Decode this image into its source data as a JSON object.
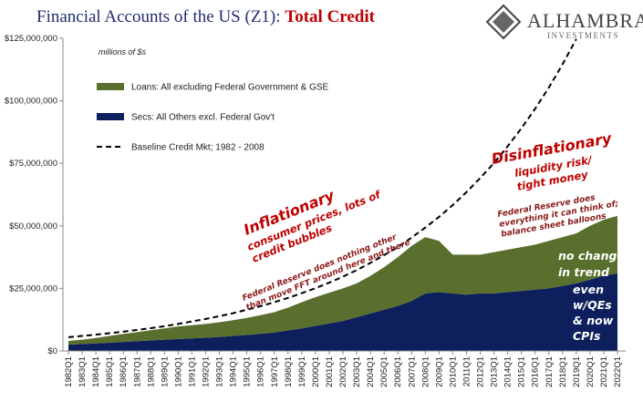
{
  "chart_data": {
    "type": "stacked-area",
    "title": "Financial Accounts of the US (Z1): ",
    "title_highlight": "Total Credit",
    "logo": "ALHAMBRA",
    "logo_sub": "INVESTMENTS",
    "units_note": "millions of $s",
    "legend": "upper left",
    "categories": [
      "1982Q1",
      "1983Q1",
      "1984Q1",
      "1985Q1",
      "1986Q1",
      "1987Q1",
      "1988Q1",
      "1989Q1",
      "1990Q1",
      "1991Q1",
      "1992Q1",
      "1993Q1",
      "1994Q1",
      "1995Q1",
      "1996Q1",
      "1997Q1",
      "1998Q1",
      "1999Q1",
      "2000Q1",
      "2001Q1",
      "2002Q1",
      "2003Q1",
      "2004Q1",
      "2005Q1",
      "2006Q1",
      "2007Q1",
      "2008Q1",
      "2009Q1",
      "2010Q1",
      "2011Q1",
      "2012Q1",
      "2013Q1",
      "2014Q1",
      "2015Q1",
      "2016Q1",
      "2017Q1",
      "2018Q1",
      "2019Q1",
      "2020Q1",
      "2021Q1",
      "2022Q1"
    ],
    "series": [
      {
        "name": "Secs: All Others excl. Federal Gov't",
        "color": "#0d1f5c",
        "kind": "area",
        "values": [
          2500000,
          2800000,
          3000000,
          3300000,
          3600000,
          3900000,
          4200000,
          4500000,
          4800000,
          5000000,
          5300000,
          5600000,
          6000000,
          6400000,
          6900000,
          7400000,
          8200000,
          9000000,
          10000000,
          11000000,
          12000000,
          13500000,
          15000000,
          16500000,
          18000000,
          20000000,
          23000000,
          23500000,
          23000000,
          22500000,
          23000000,
          23000000,
          23500000,
          24000000,
          24500000,
          25000000,
          26000000,
          27000000,
          28500000,
          30000000,
          31000000
        ]
      },
      {
        "name": "Loans: All excluding Federal Government & GSE",
        "color": "#5a6e2e",
        "kind": "area",
        "values": [
          1500000,
          1700000,
          2200000,
          2700000,
          3200000,
          3600000,
          4100000,
          4500000,
          5000000,
          5300000,
          5500000,
          5900000,
          6300000,
          6800000,
          7400000,
          8100000,
          9100000,
          10500000,
          11500000,
          12300000,
          13000000,
          13500000,
          15000000,
          17000000,
          19500000,
          22000000,
          22500000,
          20500000,
          15500000,
          16000000,
          15500000,
          16500000,
          17000000,
          17500000,
          18000000,
          19000000,
          19500000,
          20000000,
          21500000,
          22500000,
          23000000
        ]
      },
      {
        "name": "Baseline Credit Mkt; 1982 - 2008",
        "color": "#000000",
        "kind": "dashed-line",
        "values": [
          5500000,
          6000000,
          6500000,
          7100000,
          7700000,
          8400000,
          9100000,
          9900000,
          10800000,
          11800000,
          12800000,
          13900000,
          15100000,
          16500000,
          17900000,
          19500000,
          21200000,
          23100000,
          25100000,
          27300000,
          29700000,
          32300000,
          35200000,
          38300000,
          41600000,
          45300000,
          49300000,
          53600000,
          58300000,
          63500000,
          69100000,
          75100000,
          81800000,
          89000000,
          96800000,
          105300000,
          114600000,
          124700000,
          null,
          null,
          null
        ]
      }
    ],
    "ylim": [
      0,
      125000000
    ],
    "yticks": [
      {
        "value": 0,
        "label": "$0"
      },
      {
        "value": 25000000,
        "label": "$25,000,000"
      },
      {
        "value": 50000000,
        "label": "$50,000,000"
      },
      {
        "value": 75000000,
        "label": "$75,000,000"
      },
      {
        "value": 100000000,
        "label": "$100,000,000"
      },
      {
        "value": 125000000,
        "label": "$125,000,000"
      }
    ],
    "annotations": [
      {
        "lines": [
          "Inflationary"
        ]
      },
      {
        "lines": [
          "consumer prices, lots of",
          "credit bubbles"
        ]
      },
      {
        "lines": [
          "Federal Reserve does nothing other",
          "than move FFT around here and there"
        ]
      },
      {
        "lines": [
          "Disinflationary"
        ]
      },
      {
        "lines": [
          "liquidity risk/",
          "tight money"
        ]
      },
      {
        "lines": [
          "Federal Reserve does",
          "everything it can think of;",
          "balance sheet balloons"
        ]
      },
      {
        "lines": [
          "no change",
          "in trend"
        ]
      },
      {
        "lines": [
          "even",
          "w/QEs",
          "& now",
          "CPIs"
        ]
      }
    ]
  }
}
